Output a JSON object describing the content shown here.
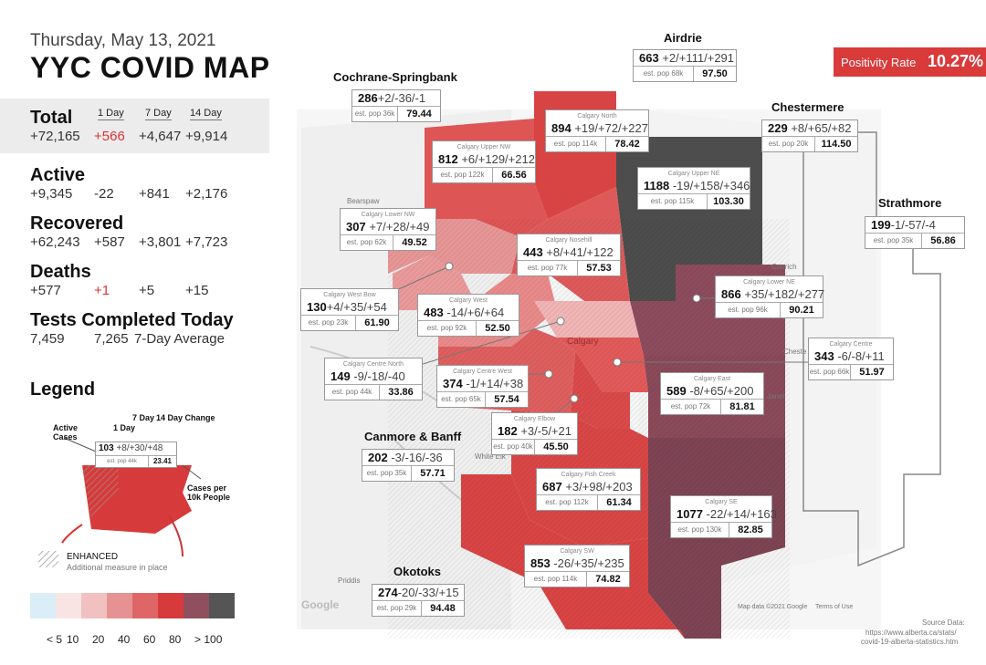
{
  "header": {
    "date": "Thursday, May 13, 2021",
    "title": "YYC COVID MAP"
  },
  "positivity": {
    "label": "Positivity Rate",
    "value": "10.27%"
  },
  "columns": {
    "d1": "1 Day",
    "d7": "7 Day",
    "d14": "14 Day"
  },
  "stats": {
    "total": {
      "label": "Total",
      "value": "+72,165",
      "d1": "+566",
      "d7": "+4,647",
      "d14": "+9,914"
    },
    "active": {
      "label": "Active",
      "value": "+9,345",
      "d1": "-22",
      "d7": "+841",
      "d14": "+2,176"
    },
    "recovered": {
      "label": "Recovered",
      "value": "+62,243",
      "d1": "+587",
      "d7": "+3,801",
      "d14": "+7,723"
    },
    "deaths": {
      "label": "Deaths",
      "value": "+577",
      "d1": "+1",
      "d7": "+5",
      "d14": "+15"
    },
    "tests": {
      "label": "Tests Completed Today",
      "value": "7,459",
      "avg_value": "7,265",
      "avg_label": "7-Day Average"
    }
  },
  "legend": {
    "title": "Legend",
    "active_cases": "Active Cases",
    "one_day": "1 Day",
    "seven_day": "7 Day",
    "fourteen_day": "14 Day Change",
    "cases_per": "Cases per 10k People",
    "sample_active": "103",
    "sample_changes": "+8/+30/+48",
    "sample_pop": "est. pop 44k",
    "sample_rate": "23.41",
    "enhanced": "ENHANCED",
    "enhanced_sub": "Additional measure in place",
    "scale_labels": [
      "< 5",
      "10",
      "20",
      "40",
      "60",
      "80",
      "> 100"
    ],
    "scale_colors": [
      "#dbeef8",
      "#f9e4e4",
      "#f1c0c0",
      "#e79292",
      "#df6666",
      "#d73a3a",
      "#8f4f5e",
      "#555555"
    ]
  },
  "regions": {
    "airdrie": {
      "name": "",
      "active": "663",
      "changes": "+2/+111/+291",
      "pop": "est. pop 68k",
      "rate": "97.50"
    },
    "cochrane": {
      "name": "",
      "active": "286",
      "changes": "+2/-36/-1",
      "pop": "est. pop 36k",
      "rate": "79.44"
    },
    "north": {
      "name": "Calgary North",
      "active": "894",
      "changes": "+19/+72/+227",
      "pop": "est. pop 114k",
      "rate": "78.42"
    },
    "upper_nw": {
      "name": "Calgary Upper NW",
      "active": "812",
      "changes": "+6/+129/+212",
      "pop": "est. pop 122k",
      "rate": "66.56"
    },
    "upper_ne": {
      "name": "Calgary Upper NE",
      "active": "1188",
      "changes": "-19/+158/+346",
      "pop": "est. pop 115k",
      "rate": "103.30"
    },
    "chestermere": {
      "name": "",
      "active": "229",
      "changes": "+8/+65/+82",
      "pop": "est. pop 20k",
      "rate": "114.50"
    },
    "lower_nw": {
      "name": "Calgary Lower NW",
      "active": "307",
      "changes": "+7/+28/+49",
      "pop": "est. pop 62k",
      "rate": "49.52"
    },
    "nosehill": {
      "name": "Calgary Nosehill",
      "active": "443",
      "changes": "+8/+41/+122",
      "pop": "est. pop 77k",
      "rate": "57.53"
    },
    "strathmore": {
      "name": "",
      "active": "199",
      "changes": "-1/-57/-4",
      "pop": "est. pop 35k",
      "rate": "56.86"
    },
    "west_bow": {
      "name": "Calgary West Bow",
      "active": "130",
      "changes": "+4/+35/+54",
      "pop": "est. pop 23k",
      "rate": "61.90"
    },
    "west": {
      "name": "Calgary West",
      "active": "483",
      "changes": "-14/+6/+64",
      "pop": "est. pop 92k",
      "rate": "52.50"
    },
    "lower_ne": {
      "name": "Calgary Lower NE",
      "active": "866",
      "changes": "+35/+182/+277",
      "pop": "est. pop 96k",
      "rate": "90.21"
    },
    "centre": {
      "name": "Calgary Centre",
      "active": "343",
      "changes": "-6/-8/+11",
      "pop": "est. pop 66k",
      "rate": "51.97"
    },
    "centre_north": {
      "name": "Calgary Centre North",
      "active": "149",
      "changes": "-9/-18/-40",
      "pop": "est. pop 44k",
      "rate": "33.86"
    },
    "centre_west": {
      "name": "Calgary Centre West",
      "active": "374",
      "changes": "-1/+14/+38",
      "pop": "est. pop 65k",
      "rate": "57.54"
    },
    "east": {
      "name": "Calgary East",
      "active": "589",
      "changes": "-8/+65/+200",
      "pop": "est. pop 72k",
      "rate": "81.81"
    },
    "elbow": {
      "name": "Calgary Elbow",
      "active": "182",
      "changes": "+3/-5/+21",
      "pop": "est. pop 40k",
      "rate": "45.50"
    },
    "canmore": {
      "name": "",
      "active": "202",
      "changes": "-3/-16/-36",
      "pop": "est. pop 35k",
      "rate": "57.71"
    },
    "fish_creek": {
      "name": "Calgary Fish Creek",
      "active": "687",
      "changes": "+3/+98/+203",
      "pop": "est. pop 112k",
      "rate": "61.34"
    },
    "se": {
      "name": "Calgary SE",
      "active": "1077",
      "changes": "-22/+14/+163",
      "pop": "est. pop 130k",
      "rate": "82.85"
    },
    "sw": {
      "name": "Calgary SW",
      "active": "853",
      "changes": "-26/+35/+235",
      "pop": "est. pop 114k",
      "rate": "74.82"
    },
    "okotoks": {
      "name": "",
      "active": "274",
      "changes": "-20/-33/+15",
      "pop": "est. pop 29k",
      "rate": "94.48"
    }
  },
  "towns": {
    "airdrie": "Airdrie",
    "cochrane": "Cochrane-Springbank",
    "chestermere": "Chestermere",
    "strathmore": "Strathmore",
    "canmore": "Canmore & Banff",
    "okotoks": "Okotoks"
  },
  "map_labels": {
    "calgary": "Calgary",
    "bearspaw": "Bearspaw",
    "conrich": "Conrich",
    "chestermere": "Cheste",
    "white_elk": "White Elk",
    "priddis": "Priddis",
    "langdon": "Janet",
    "google": "Google",
    "mapdata": "Map data ©2021 Google",
    "terms": "Terms of Use",
    "tsuutina": "SUU T'INA\nATION 145"
  },
  "source": {
    "label": "Source Data:",
    "url1": "https://www.alberta.ca/stats/",
    "url2": "covid-19-alberta-statistics.htm"
  }
}
